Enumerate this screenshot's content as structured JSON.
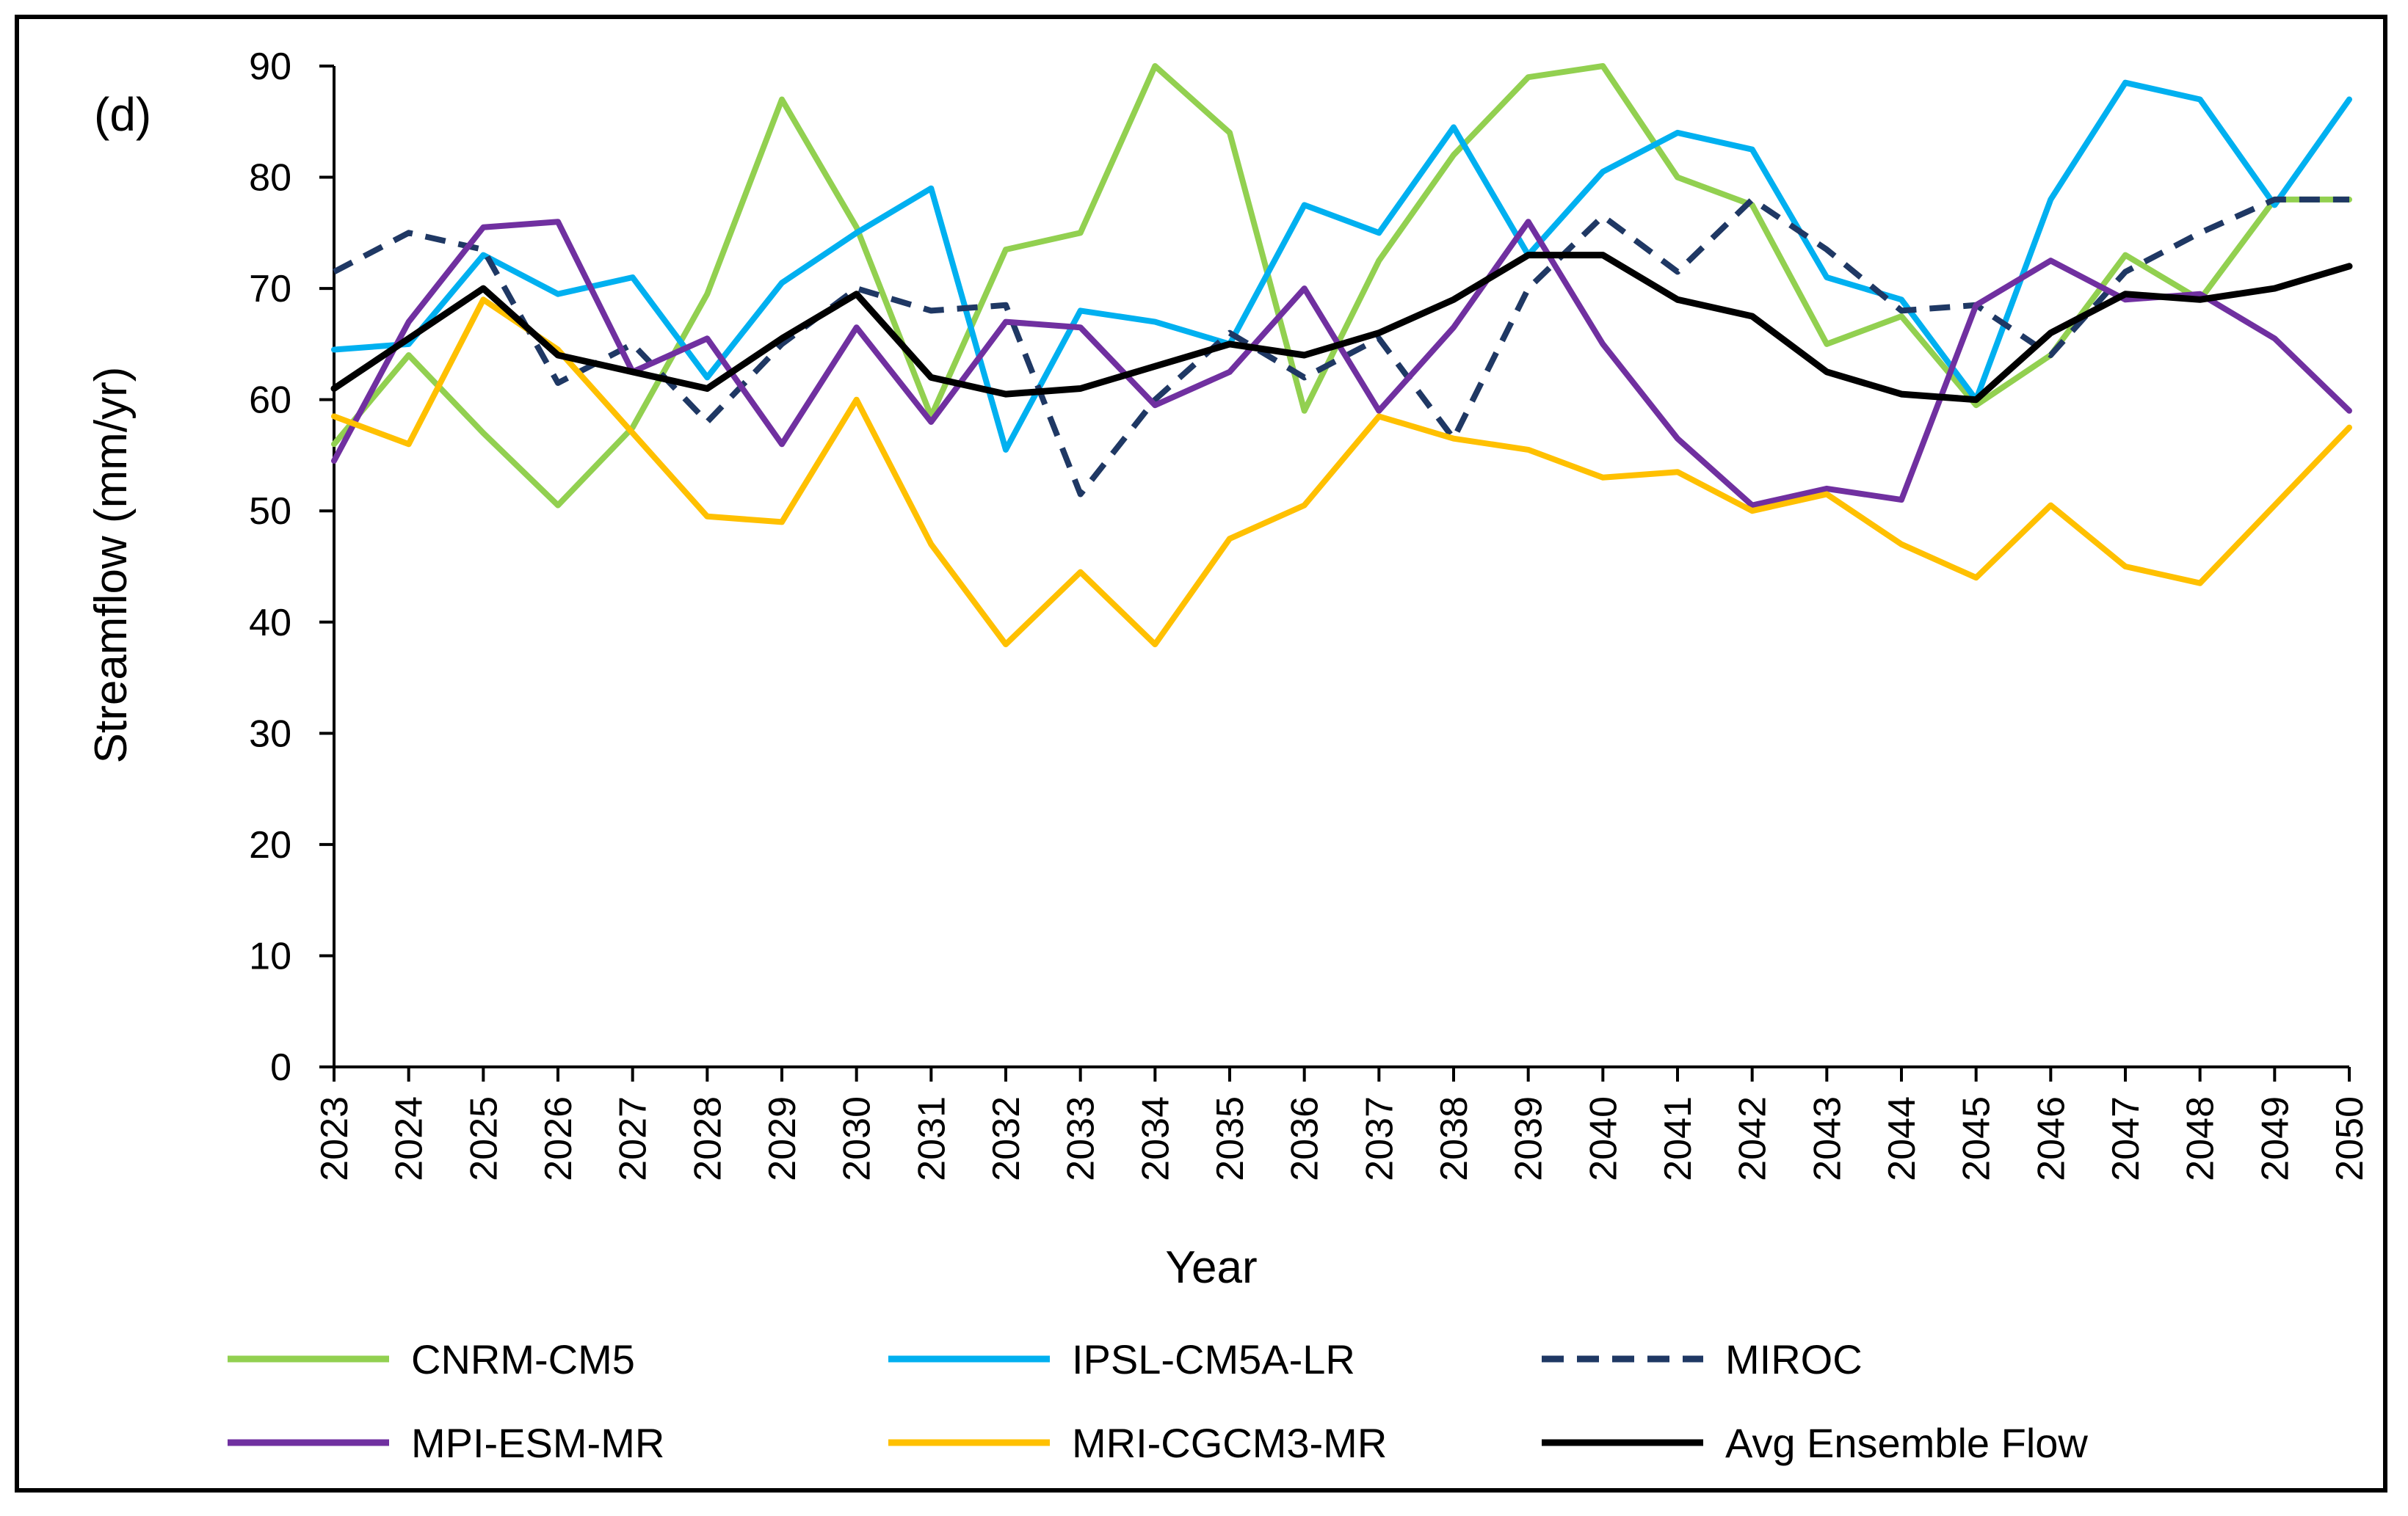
{
  "chart_data": {
    "type": "line",
    "panel_label": "(d)",
    "xlabel": "Year",
    "ylabel": "Streamflow (mm/yr)",
    "ylim": [
      0,
      90
    ],
    "yticks": [
      0,
      10,
      20,
      30,
      40,
      50,
      60,
      70,
      80,
      90
    ],
    "grid": false,
    "legend_position": "bottom",
    "x": [
      "2023",
      "2024",
      "2025",
      "2026",
      "2027",
      "2028",
      "2029",
      "2030",
      "2031",
      "2032",
      "2033",
      "2034",
      "2035",
      "2036",
      "2037",
      "2038",
      "2039",
      "2040",
      "2041",
      "2042",
      "2043",
      "2044",
      "2045",
      "2046",
      "2047",
      "2048",
      "2049",
      "2050"
    ],
    "series": [
      {
        "name": "CNRM-CM5",
        "color": "#92D050",
        "dash": false,
        "values": [
          56,
          64,
          57,
          50.5,
          57.5,
          69.5,
          87,
          75.5,
          58.5,
          73.5,
          75,
          90,
          84,
          59,
          72.5,
          82,
          89,
          90,
          80,
          77.5,
          65,
          67.5,
          59.5,
          64,
          73,
          69,
          78,
          78
        ]
      },
      {
        "name": "IPSL-CM5A-LR",
        "color": "#00B0F0",
        "dash": false,
        "values": [
          64.5,
          65,
          73,
          69.5,
          71,
          62,
          70.5,
          75,
          79,
          55.5,
          68,
          67,
          65,
          77.5,
          75,
          84.5,
          73,
          80.5,
          84,
          82.5,
          71,
          69,
          60,
          78,
          88.5,
          87,
          77.5,
          87
        ]
      },
      {
        "name": "MIROC",
        "color": "#1F3864",
        "dash": true,
        "values": [
          71.5,
          75,
          73.5,
          61.5,
          65,
          58,
          65,
          70,
          68,
          68.5,
          51.5,
          60,
          66,
          62,
          65.5,
          56.5,
          70,
          76.5,
          71.5,
          78,
          73.5,
          68,
          68.5,
          64,
          71.5,
          75,
          78,
          78
        ]
      },
      {
        "name": "MPI-ESM-MR",
        "color": "#7030A0",
        "dash": false,
        "values": [
          54.5,
          67,
          75.5,
          76,
          62.5,
          65.5,
          56,
          66.5,
          58,
          67,
          66.5,
          59.5,
          62.5,
          70,
          59,
          66.5,
          76,
          65,
          56.5,
          50.5,
          52,
          51,
          68.5,
          72.5,
          69,
          69.5,
          65.5,
          59
        ]
      },
      {
        "name": "MRI-CGCM3-MR",
        "color": "#FFC000",
        "dash": false,
        "values": [
          58.5,
          56,
          69,
          64.5,
          57,
          49.5,
          49,
          60,
          47,
          38,
          44.5,
          38,
          47.5,
          50.5,
          58.5,
          56.5,
          55.5,
          53,
          53.5,
          50,
          51.5,
          47,
          44,
          50.5,
          45,
          43.5,
          50.5,
          57.5
        ]
      },
      {
        "name": "Avg Ensemble Flow",
        "color": "#000000",
        "dash": false,
        "values": [
          61,
          65.5,
          70,
          64,
          62.5,
          61,
          65.5,
          69.5,
          62,
          60.5,
          61,
          63,
          65,
          64,
          66,
          69,
          73,
          73,
          69,
          67.5,
          62.5,
          60.5,
          60,
          66,
          69.5,
          69,
          70,
          72
        ]
      }
    ]
  }
}
